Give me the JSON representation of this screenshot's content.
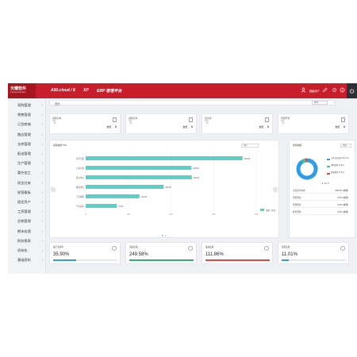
{
  "header": {
    "logo_cn": "天耀软件",
    "logo_en": "Tianyao Software",
    "product": "A50.cloud / 8",
    "edition": "XP",
    "platform": "ERP 管理平台",
    "user": "超级用户"
  },
  "sidebar": {
    "items": [
      {
        "label": "采购管理"
      },
      {
        "label": "销售管理"
      },
      {
        "label": "订货商城"
      },
      {
        "label": "跑店管理"
      },
      {
        "label": "仓库管理"
      },
      {
        "label": "配送管理"
      },
      {
        "label": "生产管理"
      },
      {
        "label": "委外加工"
      },
      {
        "label": "现金往来"
      },
      {
        "label": "经营看板"
      },
      {
        "label": "固定资产"
      },
      {
        "label": "工资管理"
      },
      {
        "label": "总帐管理"
      },
      {
        "label": "期末处理"
      },
      {
        "label": "财务报表"
      },
      {
        "label": "初始化"
      },
      {
        "label": "基础资料"
      }
    ]
  },
  "breadcrumb": {
    "label": "首页",
    "select": "本年"
  },
  "stats": [
    {
      "title": "采购订单",
      "sub": "本期",
      "delta": "-- %",
      "value_label": "数量：",
      "value": "0"
    },
    {
      "title": "采购订单",
      "sub": "本期",
      "delta": "-- %",
      "value_label": "数量：",
      "value": "0"
    },
    {
      "title": "应付款",
      "sub": "本期",
      "delta": "-- %",
      "value_label": "数量：",
      "value": "0"
    },
    {
      "title": "费用开支",
      "sub": "本期",
      "delta": "-- %",
      "value_label": "数量：",
      "value": "0"
    }
  ],
  "bar_card": {
    "title": "采购趋势TOP",
    "select": "本年"
  },
  "donut_card": {
    "title": "费用构成",
    "select": "本期",
    "pager": "1/1"
  },
  "chart_data": {
    "type": "bar",
    "categories": [
      "六月卫生",
      "上海大商",
      "武汉中心",
      "湖南天信",
      "江苏湖南",
      "广东东区"
    ],
    "values": [
      368,
      248,
      249,
      183,
      126,
      73
    ],
    "value_labels": [
      "368.00",
      "248.00",
      "249.00",
      "183.00",
      "126.00",
      "73.00"
    ],
    "xlim": [
      0,
      400
    ],
    "xticks": [
      "0",
      "100",
      "200",
      "300",
      "400"
    ],
    "legend": "金额（单位）",
    "color": "#5ad0c6"
  },
  "donut": {
    "legend": [
      {
        "label": "主营业务成本 (90.7%)",
        "color": "#2f9ee8"
      },
      {
        "label": "销售费用 (6.2%)",
        "color": "#3bc5a0"
      },
      {
        "label": "管理费用 (3.1%)",
        "color": "#e6463d"
      }
    ],
    "rows": [
      {
        "k": "主营业务成本",
        "v": "269.1% (本期)"
      },
      {
        "k": "销售费用",
        "v": "0.0% (本期)"
      },
      {
        "k": "管理费用",
        "v": "0.0% (本期)"
      },
      {
        "k": "财务费用",
        "v": "0.0% (本期)"
      }
    ]
  },
  "kpis": [
    {
      "title": "资产负债率",
      "sub": "Debt ratio",
      "value": "35.90%",
      "fill": 0.36,
      "color": "#2f9ee8"
    },
    {
      "title": "流动比率",
      "sub": "Current ratio",
      "value": "249.58%",
      "fill": 1.0,
      "color": "#2fb36a"
    },
    {
      "title": "速动比率",
      "sub": "Quick ratio",
      "value": "111.86%",
      "fill": 1.0,
      "color": "#e6463d"
    },
    {
      "title": "现金比率",
      "sub": "Cash ratio",
      "value": "11.01%",
      "fill": 0.11,
      "color": "#2f9ee8"
    }
  ]
}
